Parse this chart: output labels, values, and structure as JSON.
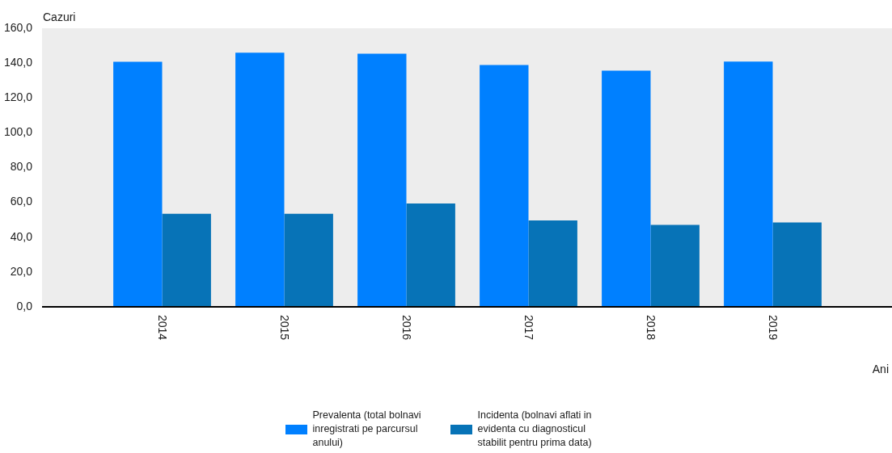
{
  "chart_data": {
    "type": "bar",
    "xlabel": "Ani",
    "ylabel": "Cazuri",
    "categories": [
      "2014",
      "2015",
      "2016",
      "2017",
      "2018",
      "2019"
    ],
    "series": [
      {
        "name": "Prevalenta (total bolnavi inregistrati pe parcursul anului)",
        "color": "#0080ff",
        "values": [
          140.7,
          146.0,
          145.4,
          138.9,
          135.6,
          140.9
        ]
      },
      {
        "name": "Incidenta (bolnavi aflati in evidenta cu diagnosticul stabilit pentru prima data)",
        "color": "#0773b7",
        "values": [
          53.4,
          53.4,
          59.4,
          49.6,
          47.1,
          48.5
        ]
      }
    ],
    "ylim": [
      0,
      160
    ],
    "yticks": [
      {
        "value": 0,
        "label": "0,0"
      },
      {
        "value": 20,
        "label": "20,0"
      },
      {
        "value": 40,
        "label": "40,0"
      },
      {
        "value": 60,
        "label": "60,0"
      },
      {
        "value": 80,
        "label": "80,0"
      },
      {
        "value": 100,
        "label": "100,0"
      },
      {
        "value": 120,
        "label": "120,0"
      },
      {
        "value": 140,
        "label": "140,0"
      },
      {
        "value": 160,
        "label": "160,0"
      }
    ],
    "grid": false,
    "legend": "bottom"
  }
}
